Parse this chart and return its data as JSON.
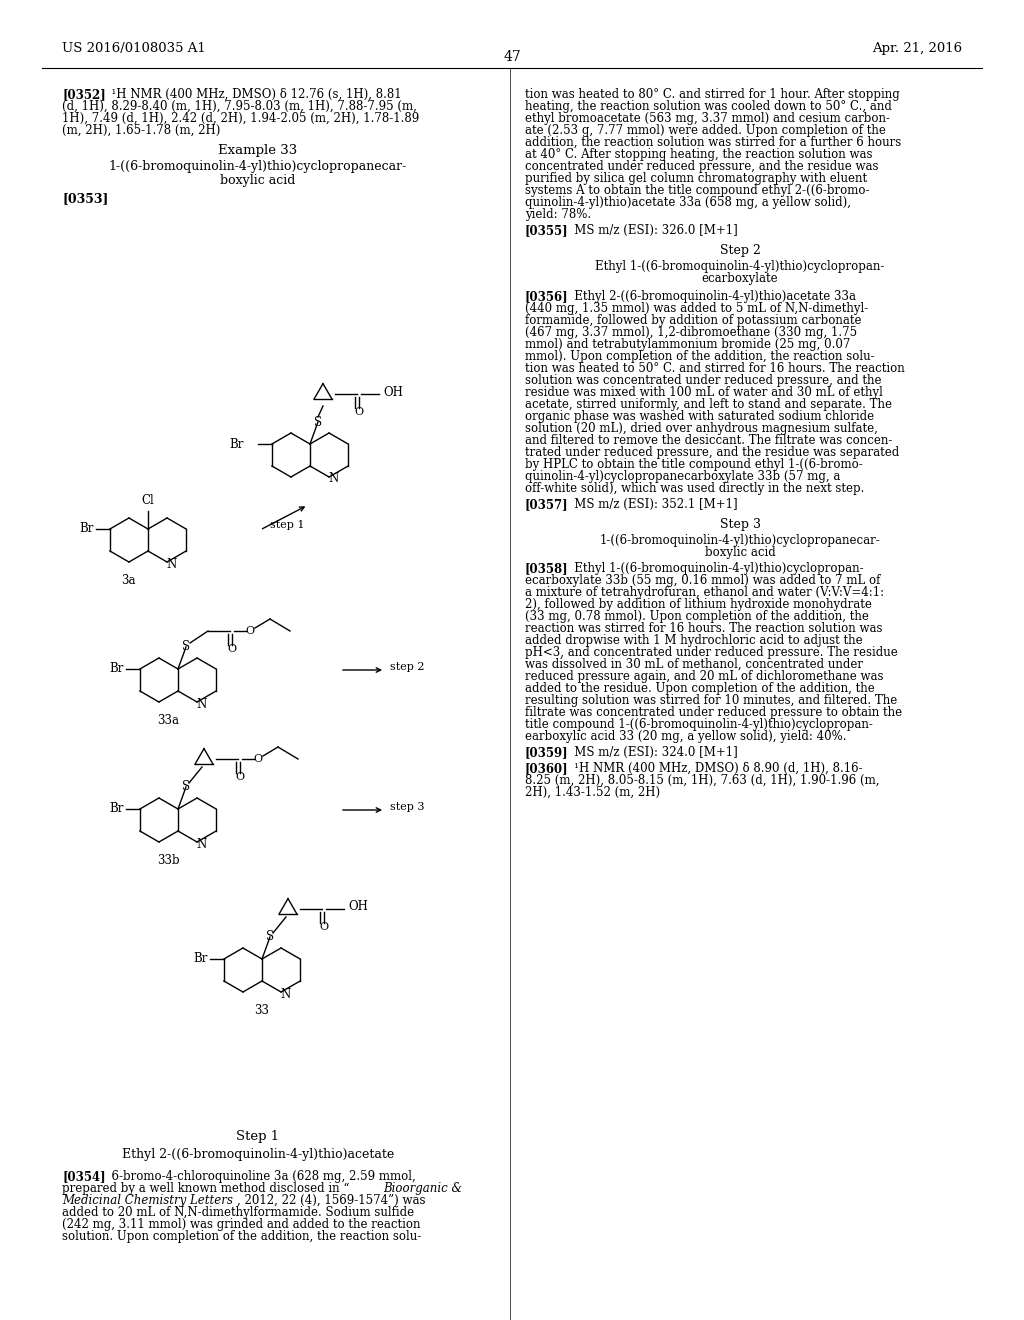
{
  "page_header_left": "US 2016/0108035 A1",
  "page_header_right": "Apr. 21, 2016",
  "page_number": "47",
  "background_color": "#ffffff"
}
